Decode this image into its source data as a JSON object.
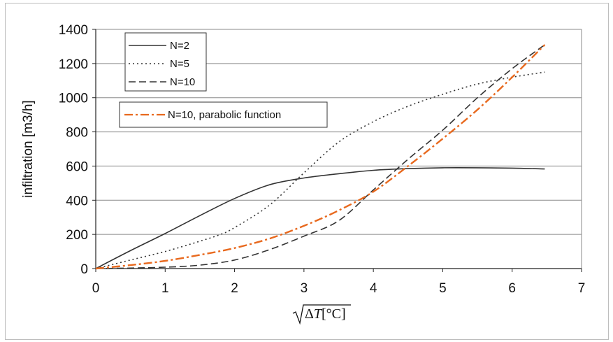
{
  "chart_data": {
    "type": "line",
    "title": "",
    "xlabel_delta": "Δ",
    "xlabel_var": "T",
    "xlabel_unit": "[°C]",
    "ylabel": "infiltration [m3/h]",
    "xlim": [
      0,
      7
    ],
    "ylim": [
      0,
      1400
    ],
    "xticks": [
      "0",
      "1",
      "2",
      "3",
      "4",
      "5",
      "6",
      "7"
    ],
    "yticks": [
      "0",
      "200",
      "400",
      "600",
      "800",
      "1000",
      "1200",
      "1400"
    ],
    "grid": "horizontal",
    "legend_position": "top-left",
    "series": [
      {
        "name": "N=2",
        "color": "#333333",
        "dash": "solid",
        "x": [
          0,
          0.5,
          1.0,
          1.5,
          2.0,
          2.5,
          3.0,
          3.5,
          4.0,
          4.5,
          5.0,
          5.5,
          6.0,
          6.47
        ],
        "y": [
          0,
          105,
          205,
          310,
          410,
          490,
          530,
          555,
          575,
          585,
          590,
          590,
          588,
          583
        ]
      },
      {
        "name": "N=5",
        "color": "#333333",
        "dash": "dotted",
        "x": [
          0,
          0.5,
          1.0,
          1.5,
          1.8,
          2.0,
          2.5,
          3.0,
          3.5,
          4.0,
          4.5,
          5.0,
          5.5,
          6.0,
          6.47
        ],
        "y": [
          0,
          50,
          100,
          160,
          200,
          240,
          370,
          560,
          740,
          860,
          950,
          1020,
          1080,
          1120,
          1150
        ]
      },
      {
        "name": "N=10",
        "color": "#333333",
        "dash": "dashed",
        "x": [
          0,
          0.5,
          1.0,
          1.5,
          2.0,
          2.5,
          3.0,
          3.5,
          4.0,
          4.5,
          5.0,
          5.5,
          6.0,
          6.47
        ],
        "y": [
          0,
          3,
          8,
          20,
          50,
          110,
          190,
          280,
          460,
          640,
          810,
          1000,
          1170,
          1310
        ]
      },
      {
        "name": "N=10, parabolic function",
        "color": "#E8691E",
        "dash": "dashdot",
        "x": [
          0,
          0.5,
          1.0,
          1.5,
          2.0,
          2.5,
          3.0,
          3.5,
          4.0,
          4.5,
          5.0,
          5.5,
          6.0,
          6.47
        ],
        "y": [
          0,
          20,
          45,
          80,
          120,
          175,
          250,
          340,
          450,
          600,
          760,
          930,
          1120,
          1310
        ]
      }
    ]
  }
}
